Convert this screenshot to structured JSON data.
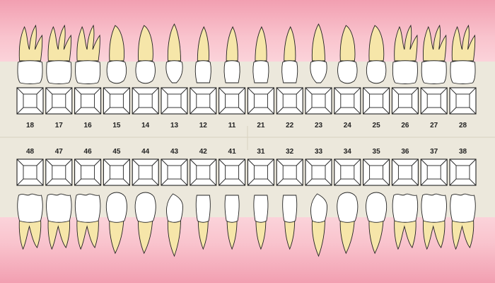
{
  "chart": {
    "upper_teeth": [
      {
        "number": "18",
        "type": "molar",
        "quadrant": "upper-right"
      },
      {
        "number": "17",
        "type": "molar",
        "quadrant": "upper-right"
      },
      {
        "number": "16",
        "type": "molar",
        "quadrant": "upper-right"
      },
      {
        "number": "15",
        "type": "premolar",
        "quadrant": "upper-right"
      },
      {
        "number": "14",
        "type": "premolar",
        "quadrant": "upper-right"
      },
      {
        "number": "13",
        "type": "canine",
        "quadrant": "upper-right"
      },
      {
        "number": "12",
        "type": "incisor",
        "quadrant": "upper-right"
      },
      {
        "number": "11",
        "type": "incisor",
        "quadrant": "upper-right"
      },
      {
        "number": "21",
        "type": "incisor",
        "quadrant": "upper-left"
      },
      {
        "number": "22",
        "type": "incisor",
        "quadrant": "upper-left"
      },
      {
        "number": "23",
        "type": "canine",
        "quadrant": "upper-left"
      },
      {
        "number": "24",
        "type": "premolar",
        "quadrant": "upper-left"
      },
      {
        "number": "25",
        "type": "premolar",
        "quadrant": "upper-left"
      },
      {
        "number": "26",
        "type": "molar",
        "quadrant": "upper-left"
      },
      {
        "number": "27",
        "type": "molar",
        "quadrant": "upper-left"
      },
      {
        "number": "28",
        "type": "molar",
        "quadrant": "upper-left"
      }
    ],
    "lower_teeth": [
      {
        "number": "48",
        "type": "molar",
        "quadrant": "lower-right"
      },
      {
        "number": "47",
        "type": "molar",
        "quadrant": "lower-right"
      },
      {
        "number": "46",
        "type": "molar",
        "quadrant": "lower-right"
      },
      {
        "number": "45",
        "type": "premolar",
        "quadrant": "lower-right"
      },
      {
        "number": "44",
        "type": "premolar",
        "quadrant": "lower-right"
      },
      {
        "number": "43",
        "type": "canine",
        "quadrant": "lower-right"
      },
      {
        "number": "42",
        "type": "incisor",
        "quadrant": "lower-right"
      },
      {
        "number": "41",
        "type": "incisor",
        "quadrant": "lower-right"
      },
      {
        "number": "31",
        "type": "incisor",
        "quadrant": "lower-left"
      },
      {
        "number": "32",
        "type": "incisor",
        "quadrant": "lower-left"
      },
      {
        "number": "33",
        "type": "canine",
        "quadrant": "lower-left"
      },
      {
        "number": "34",
        "type": "premolar",
        "quadrant": "lower-left"
      },
      {
        "number": "35",
        "type": "premolar",
        "quadrant": "lower-left"
      },
      {
        "number": "36",
        "type": "molar",
        "quadrant": "lower-left"
      },
      {
        "number": "37",
        "type": "molar",
        "quadrant": "lower-left"
      },
      {
        "number": "38",
        "type": "molar",
        "quadrant": "lower-left"
      }
    ]
  },
  "colors": {
    "background": "#ece8dc",
    "gum": "#f7bcc8",
    "gum_light": "#fbd7de",
    "crown": "#ffffff",
    "root": "#f6e6a9",
    "outline": "#222222"
  },
  "icons": {
    "tooth": "tooth-icon",
    "surface_box": "tooth-surface-box"
  }
}
